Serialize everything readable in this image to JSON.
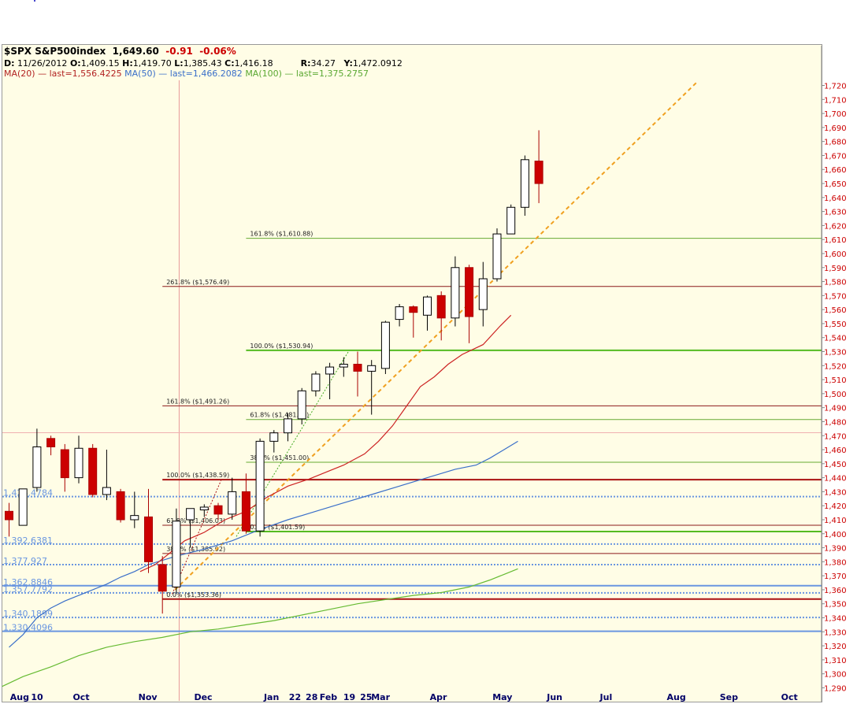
{
  "header": {
    "symbol": "$SPX S&P500index",
    "last": "1,649.60",
    "change": "-0.91",
    "change_pct": "-0.06%",
    "date_label": "D:",
    "date": "11/26/2012",
    "open_label": "O:",
    "open": "1,409.15",
    "high_label": "H:",
    "high": "1,419.70",
    "low_label": "L:",
    "low": "1,385.43",
    "close_label": "C:",
    "close": "1,416.18",
    "r_label": "R:",
    "r": "34.27",
    "y_label": "Y:",
    "y": "1,472.0912",
    "ma20": "MA(20)",
    "ma20_last": "— last=1,556.4225",
    "ma50": "MA(50)",
    "ma50_last": "— last=1,466.2082",
    "ma100": "MA(100)",
    "ma100_last": "— last=1,375.2757"
  },
  "colors": {
    "up_candle": "#ffffff",
    "down_candle": "#cc0000",
    "candle_outline": "#000000",
    "ma20": "#cc2222",
    "ma50": "#3a6fc9",
    "ma100": "#66bb33",
    "axis_text": "#cc0000",
    "month_text": "#000066",
    "trendline": "#f0a020"
  },
  "chart_data": {
    "type": "candlestick",
    "title": "$SPX S&P500index",
    "ylim": [
      1290,
      1725
    ],
    "y_ticks": [
      1290,
      1300,
      1310,
      1320,
      1330,
      1340,
      1350,
      1360,
      1370,
      1380,
      1390,
      1400,
      1410,
      1420,
      1430,
      1440,
      1450,
      1460,
      1470,
      1480,
      1490,
      1500,
      1510,
      1520,
      1530,
      1540,
      1550,
      1560,
      1570,
      1580,
      1590,
      1600,
      1610,
      1620,
      1630,
      1640,
      1650,
      1660,
      1670,
      1680,
      1690,
      1700,
      1710,
      1720
    ],
    "y_tick_labels": [
      "1,290",
      "1,300",
      "1,310",
      "1,320",
      "1,330",
      "1,340",
      "1,350",
      "1,360",
      "1,370",
      "1,380",
      "1,390",
      "1,400",
      "1,410",
      "1,420",
      "1,430",
      "1,440",
      "1,450",
      "1,460",
      "1,470",
      "1,480",
      "1,490",
      "1,500",
      "1,510",
      "1,520",
      "1,530",
      "1,540",
      "1,550",
      "1,560",
      "1,570",
      "1,580",
      "1,590",
      "1,600",
      "1,610",
      "1,620",
      "1,630",
      "1,640",
      "1,650",
      "1,660",
      "1,670",
      "1,680",
      "1,690",
      "1,700",
      "1,710",
      "1,720"
    ],
    "x_labels": [
      "Aug",
      "10",
      "Oct",
      "Nov",
      "Dec",
      "Jan",
      "22",
      "28",
      "Feb",
      "19",
      "25",
      "Mar",
      "Apr",
      "May",
      "Jun",
      "Jul",
      "Aug",
      "Sep",
      "Oct"
    ],
    "x_label_index": [
      0.3,
      1.8,
      4.8,
      9.5,
      13.5,
      18.5,
      20.3,
      21.5,
      22.5,
      24.2,
      25.4,
      26.2,
      30.4,
      34.9,
      38.8,
      42.6,
      47.4,
      51.2,
      55.6
    ],
    "candles": [
      {
        "i": 0,
        "o": 1416,
        "h": 1422,
        "l": 1398,
        "c": 1410
      },
      {
        "i": 1,
        "o": 1406,
        "h": 1432,
        "l": 1406,
        "c": 1432
      },
      {
        "i": 2,
        "o": 1433,
        "h": 1475,
        "l": 1430,
        "c": 1462
      },
      {
        "i": 3,
        "o": 1468,
        "h": 1470,
        "l": 1456,
        "c": 1462
      },
      {
        "i": 4,
        "o": 1460,
        "h": 1464,
        "l": 1430,
        "c": 1440
      },
      {
        "i": 5,
        "o": 1440,
        "h": 1470,
        "l": 1436,
        "c": 1461
      },
      {
        "i": 6,
        "o": 1461,
        "h": 1464,
        "l": 1426,
        "c": 1428
      },
      {
        "i": 7,
        "o": 1428,
        "h": 1460,
        "l": 1424,
        "c": 1433
      },
      {
        "i": 8,
        "o": 1430,
        "h": 1432,
        "l": 1408,
        "c": 1410
      },
      {
        "i": 9,
        "o": 1410,
        "h": 1430,
        "l": 1404,
        "c": 1413
      },
      {
        "i": 10,
        "o": 1412,
        "h": 1432,
        "l": 1372,
        "c": 1380
      },
      {
        "i": 11,
        "o": 1378,
        "h": 1384,
        "l": 1343,
        "c": 1359
      },
      {
        "i": 12,
        "o": 1362,
        "h": 1418,
        "l": 1358,
        "c": 1409
      },
      {
        "i": 13,
        "o": 1410,
        "h": 1418,
        "l": 1390,
        "c": 1418
      },
      {
        "i": 14,
        "o": 1417,
        "h": 1421,
        "l": 1412,
        "c": 1419
      },
      {
        "i": 15,
        "o": 1420,
        "h": 1422,
        "l": 1410,
        "c": 1414
      },
      {
        "i": 16,
        "o": 1414,
        "h": 1440,
        "l": 1410,
        "c": 1430
      },
      {
        "i": 17,
        "o": 1430,
        "h": 1443,
        "l": 1400,
        "c": 1402
      },
      {
        "i": 18,
        "o": 1402,
        "h": 1468,
        "l": 1398,
        "c": 1466
      },
      {
        "i": 19,
        "o": 1466,
        "h": 1474,
        "l": 1458,
        "c": 1472
      },
      {
        "i": 20,
        "o": 1472,
        "h": 1486,
        "l": 1466,
        "c": 1482
      },
      {
        "i": 21,
        "o": 1482,
        "h": 1504,
        "l": 1478,
        "c": 1502
      },
      {
        "i": 22,
        "o": 1502,
        "h": 1516,
        "l": 1498,
        "c": 1514
      },
      {
        "i": 23,
        "o": 1514,
        "h": 1522,
        "l": 1496,
        "c": 1519
      },
      {
        "i": 24,
        "o": 1519,
        "h": 1526,
        "l": 1512,
        "c": 1521
      },
      {
        "i": 25,
        "o": 1521,
        "h": 1530,
        "l": 1498,
        "c": 1516
      },
      {
        "i": 26,
        "o": 1516,
        "h": 1524,
        "l": 1485,
        "c": 1520
      },
      {
        "i": 27,
        "o": 1518,
        "h": 1552,
        "l": 1514,
        "c": 1551
      },
      {
        "i": 28,
        "o": 1553,
        "h": 1564,
        "l": 1548,
        "c": 1562
      },
      {
        "i": 29,
        "o": 1562,
        "h": 1563,
        "l": 1540,
        "c": 1558
      },
      {
        "i": 30,
        "o": 1556,
        "h": 1570,
        "l": 1545,
        "c": 1569
      },
      {
        "i": 31,
        "o": 1570,
        "h": 1573,
        "l": 1538,
        "c": 1554
      },
      {
        "i": 32,
        "o": 1554,
        "h": 1598,
        "l": 1548,
        "c": 1590
      },
      {
        "i": 33,
        "o": 1590,
        "h": 1592,
        "l": 1536,
        "c": 1555
      },
      {
        "i": 34,
        "o": 1560,
        "h": 1594,
        "l": 1548,
        "c": 1582
      },
      {
        "i": 35,
        "o": 1582,
        "h": 1618,
        "l": 1580,
        "c": 1614
      },
      {
        "i": 36,
        "o": 1614,
        "h": 1635,
        "l": 1614,
        "c": 1633
      },
      {
        "i": 37,
        "o": 1633,
        "h": 1670,
        "l": 1627,
        "c": 1667
      },
      {
        "i": 38,
        "o": 1666,
        "h": 1688,
        "l": 1636,
        "c": 1650
      }
    ],
    "ma20": [
      [
        9.4,
        1373
      ],
      [
        10.5,
        1378
      ],
      [
        11.5,
        1386
      ],
      [
        12.6,
        1395
      ],
      [
        14,
        1401
      ],
      [
        15.5,
        1410
      ],
      [
        17,
        1416
      ],
      [
        18.5,
        1426
      ],
      [
        20,
        1434
      ],
      [
        21.5,
        1439
      ],
      [
        23,
        1445
      ],
      [
        24,
        1449
      ],
      [
        25.5,
        1457
      ],
      [
        26.5,
        1466
      ],
      [
        27.5,
        1477
      ],
      [
        28.5,
        1491
      ],
      [
        29.5,
        1505
      ],
      [
        30.5,
        1512
      ],
      [
        31.5,
        1521
      ],
      [
        32.5,
        1528
      ],
      [
        34,
        1535
      ],
      [
        35.2,
        1548
      ],
      [
        36,
        1556
      ]
    ],
    "ma50": [
      [
        0,
        1319
      ],
      [
        1,
        1328
      ],
      [
        2,
        1340
      ],
      [
        3,
        1347
      ],
      [
        4,
        1352
      ],
      [
        5,
        1356
      ],
      [
        6,
        1360
      ],
      [
        7,
        1364
      ],
      [
        8,
        1369
      ],
      [
        9,
        1373
      ],
      [
        10,
        1378
      ],
      [
        12,
        1384
      ],
      [
        14,
        1389
      ],
      [
        16,
        1395
      ],
      [
        18,
        1403
      ],
      [
        20,
        1410
      ],
      [
        22,
        1416
      ],
      [
        24,
        1422
      ],
      [
        26,
        1428
      ],
      [
        28,
        1434
      ],
      [
        30,
        1440
      ],
      [
        32,
        1446
      ],
      [
        33.5,
        1449
      ],
      [
        34.5,
        1454
      ],
      [
        35.5,
        1460
      ],
      [
        36.5,
        1466
      ]
    ],
    "ma100": [
      [
        -0.5,
        1291
      ],
      [
        1,
        1298
      ],
      [
        3,
        1305
      ],
      [
        5,
        1313
      ],
      [
        7,
        1319
      ],
      [
        9,
        1323
      ],
      [
        11,
        1326
      ],
      [
        13,
        1330
      ],
      [
        15,
        1332
      ],
      [
        17,
        1335
      ],
      [
        19,
        1338
      ],
      [
        21,
        1342
      ],
      [
        23,
        1346
      ],
      [
        25,
        1350
      ],
      [
        27,
        1353
      ],
      [
        29,
        1356
      ],
      [
        31,
        1358
      ],
      [
        33,
        1362
      ],
      [
        34.5,
        1367
      ],
      [
        35.5,
        1371
      ],
      [
        36.5,
        1375
      ]
    ],
    "trendline": [
      [
        11.9,
        1360
      ],
      [
        49.3,
        1722
      ]
    ],
    "dotted_trendline": [
      [
        16.3,
        1398
      ],
      [
        24.4,
        1531
      ]
    ],
    "dotted_trendline2": [
      [
        11.7,
        1357
      ],
      [
        15.2,
        1438
      ]
    ],
    "hlines": [
      {
        "y": 1610.88,
        "color": "#66aa33",
        "w": 1,
        "x0": 17,
        "label": "161.8%  ($1,610.88)"
      },
      {
        "y": 1576.49,
        "color": "#8b1a1a",
        "w": 1,
        "x0": 11,
        "label": "261.8%  ($1,576.49)"
      },
      {
        "y": 1530.94,
        "color": "#55bb22",
        "w": 2,
        "x0": 17,
        "label": "100.0%  ($1,530.94)"
      },
      {
        "y": 1491.26,
        "color": "#8b1a1a",
        "w": 1,
        "x0": 11,
        "label": "161.8%  ($1,491.26)"
      },
      {
        "y": 1481.53,
        "color": "#66aa33",
        "w": 1,
        "x0": 17,
        "label": "61.8%  ($1,481.53)"
      },
      {
        "y": 1451.0,
        "color": "#66aa33",
        "w": 1,
        "x0": 17,
        "label": "38.2%  ($1,451.00)"
      },
      {
        "y": 1438.59,
        "color": "#aa1111",
        "w": 2,
        "x0": 11,
        "label": "100.0%  ($1,438.59)"
      },
      {
        "y": 1406.03,
        "color": "#8b1a1a",
        "w": 1,
        "x0": 11,
        "label": "61.8%  ($1,406.03)"
      },
      {
        "y": 1401.59,
        "color": "#55bb22",
        "w": 2,
        "x0": 17,
        "label": "0.0%  ($1,401.59)"
      },
      {
        "y": 1385.92,
        "color": "#8b1a1a",
        "w": 1,
        "x0": 11,
        "label": "38.2%  ($1,385.92)"
      },
      {
        "y": 1353.36,
        "color": "#aa1111",
        "w": 2,
        "x0": 11,
        "label": "0.0%  ($1,353.36)"
      }
    ],
    "support_lines": [
      {
        "y": 1426.4784,
        "style": "dotted",
        "w": 2,
        "label": "1,426.4784"
      },
      {
        "y": 1392.6381,
        "style": "dotted",
        "w": 2,
        "label": "1,392.6381"
      },
      {
        "y": 1377.927,
        "style": "dotted",
        "w": 2,
        "label": "1,377.927"
      },
      {
        "y": 1362.8846,
        "style": "solid",
        "w": 2,
        "label": "1,362.8846"
      },
      {
        "y": 1357.7792,
        "style": "dotted",
        "w": 2,
        "label": "1,357.7792"
      },
      {
        "y": 1340.1899,
        "style": "dotted",
        "w": 2,
        "label": "1,340.1899"
      },
      {
        "y": 1330.4096,
        "style": "solid",
        "w": 2,
        "label": "1,330.4096"
      }
    ],
    "crosshair": {
      "x_index": 12.2,
      "y_value": 1472.09
    }
  }
}
